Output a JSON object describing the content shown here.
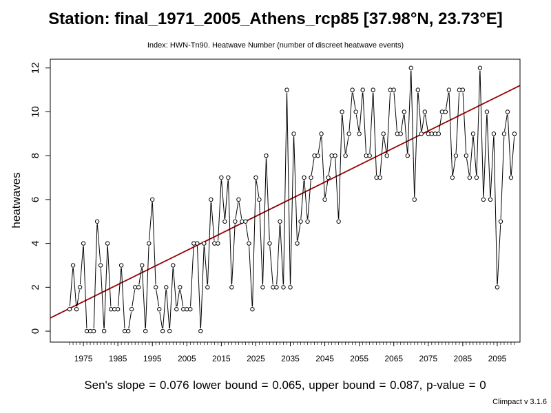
{
  "chart_data": {
    "type": "line",
    "title": "Station: final_1971_2005_Athens_rcp85 [37.98°N, 23.73°E]",
    "subtitle": "Index: HWN-Tn90. Heatwave Number (number of discreet heatwave events)",
    "xlabel": "",
    "ylabel": "heatwaves",
    "xlim": [
      1965.4,
      2101.6
    ],
    "ylim": [
      -0.5,
      12.4
    ],
    "x_ticks": [
      1975,
      1985,
      1995,
      2005,
      2015,
      2025,
      2035,
      2045,
      2055,
      2065,
      2075,
      2085,
      2095
    ],
    "y_ticks": [
      0,
      2,
      4,
      6,
      8,
      10,
      12
    ],
    "grid": false,
    "series": [
      {
        "x": [
          1971,
          1972,
          1973,
          1974,
          1975,
          1976,
          1977,
          1978,
          1979,
          1980,
          1981,
          1982,
          1983,
          1984,
          1985,
          1986,
          1987,
          1988,
          1989,
          1990,
          1991,
          1992,
          1993,
          1994,
          1995,
          1996,
          1997,
          1998,
          1999,
          2000,
          2001,
          2002,
          2003,
          2004,
          2005,
          2006,
          2007,
          2008,
          2009,
          2010,
          2011,
          2012,
          2013,
          2014,
          2015,
          2016,
          2017,
          2018,
          2019,
          2020,
          2021,
          2022,
          2023,
          2024,
          2025,
          2026,
          2027,
          2028,
          2029,
          2030,
          2031,
          2032,
          2033,
          2034,
          2035,
          2036,
          2037,
          2038,
          2039,
          2040,
          2041,
          2042,
          2043,
          2044,
          2045,
          2046,
          2047,
          2048,
          2049,
          2050,
          2051,
          2052,
          2053,
          2054,
          2055,
          2056,
          2057,
          2058,
          2059,
          2060,
          2061,
          2062,
          2063,
          2064,
          2065,
          2066,
          2067,
          2068,
          2069,
          2070,
          2071,
          2072,
          2073,
          2074,
          2075,
          2076,
          2077,
          2078,
          2079,
          2080,
          2081,
          2082,
          2083,
          2084,
          2085,
          2086,
          2087,
          2088,
          2089,
          2090,
          2091,
          2092,
          2093,
          2094,
          2095,
          2096,
          2097,
          2098,
          2099,
          2100
        ],
        "values": [
          1,
          3,
          1,
          2,
          4,
          0,
          0,
          0,
          5,
          3,
          0,
          4,
          1,
          1,
          1,
          3,
          0,
          0,
          1,
          2,
          2,
          3,
          0,
          4,
          6,
          2,
          1,
          0,
          2,
          0,
          3,
          1,
          2,
          1,
          1,
          1,
          4,
          4,
          0,
          4,
          2,
          6,
          4,
          4,
          7,
          5,
          7,
          2,
          5,
          6,
          5,
          5,
          4,
          1,
          7,
          6,
          2,
          8,
          4,
          2,
          2,
          5,
          2,
          11,
          2,
          9,
          4,
          5,
          7,
          5,
          7,
          8,
          8,
          9,
          6,
          7,
          8,
          8,
          5,
          10,
          8,
          9,
          11,
          10,
          9,
          11,
          8,
          8,
          11,
          7,
          7,
          9,
          8,
          11,
          11,
          9,
          9,
          10,
          8,
          12,
          6,
          11,
          9,
          10,
          9,
          9,
          9,
          9,
          10,
          10,
          11,
          7,
          8,
          11,
          11,
          8,
          7,
          9,
          7,
          12,
          6,
          10,
          6,
          9,
          2,
          5,
          9,
          10,
          7,
          9
        ]
      }
    ],
    "trend_line": {
      "x": [
        1965.4,
        2101.6
      ],
      "y": [
        0.6,
        11.2
      ],
      "color": "#990000"
    },
    "colors": {
      "series_line": "#000000",
      "trend": "#990000"
    }
  },
  "footer": {
    "stats": "Sen's slope = 0.076   lower bound = 0.065,   upper bound = 0.087,   p-value = 0",
    "credit": "Climpact v 3.1.6"
  }
}
